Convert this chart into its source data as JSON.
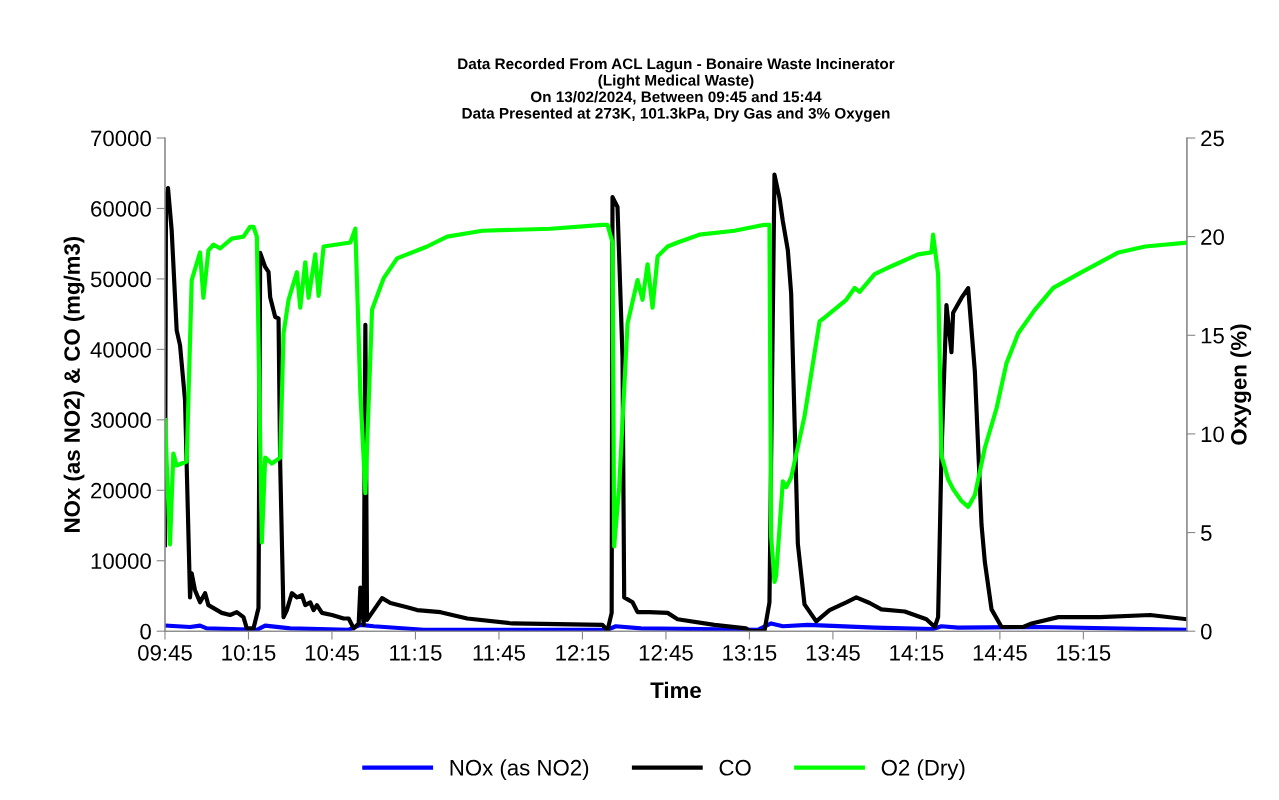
{
  "chart_data": {
    "type": "line",
    "title": "Data Recorded From ACL Lagun - Bonaire Waste Incinerator\n(Light Medical Waste)\nOn 13/02/2024, Between 09:45 and 15:44\nData Presented at 273K, 101.3kPa, Dry Gas and 3% Oxygen",
    "xlabel": "Time",
    "ylabel": "NOx (as NO2) & CO (mg/m3)",
    "y2label": "Oxygen (%)",
    "xlim": [
      9.75,
      15.87
    ],
    "xticks": [
      {
        "value": 9.75,
        "label": "09:45"
      },
      {
        "value": 10.25,
        "label": "10:15"
      },
      {
        "value": 10.75,
        "label": "10:45"
      },
      {
        "value": 11.25,
        "label": "11:15"
      },
      {
        "value": 11.75,
        "label": "11:45"
      },
      {
        "value": 12.25,
        "label": "12:15"
      },
      {
        "value": 12.75,
        "label": "12:45"
      },
      {
        "value": 13.25,
        "label": "13:15"
      },
      {
        "value": 13.75,
        "label": "13:45"
      },
      {
        "value": 14.25,
        "label": "14:15"
      },
      {
        "value": 14.75,
        "label": "14:45"
      },
      {
        "value": 15.25,
        "label": "15:15"
      }
    ],
    "ylim": [
      0,
      70000
    ],
    "yticks": [
      0,
      10000,
      20000,
      30000,
      40000,
      50000,
      60000,
      70000
    ],
    "y2lim": [
      0,
      25
    ],
    "y2ticks": [
      0,
      5,
      10,
      15,
      20,
      25
    ],
    "grid": false,
    "legend": "bottom",
    "marker": "none",
    "line_style": "solid",
    "series": [
      {
        "name": "NOx (as NO2)",
        "color": "#0000ff",
        "axis": "y",
        "x": [
          9.75,
          9.9,
          9.96,
          10.0,
          10.3,
          10.35,
          10.5,
          10.85,
          10.92,
          11.0,
          11.3,
          12.4,
          12.45,
          12.6,
          13.3,
          13.38,
          13.45,
          13.6,
          14.0,
          14.35,
          14.4,
          14.5,
          15.0,
          15.87
        ],
        "values": [
          800,
          600,
          800,
          400,
          200,
          800,
          400,
          200,
          900,
          700,
          200,
          200,
          700,
          400,
          200,
          1100,
          700,
          900,
          500,
          300,
          700,
          500,
          600,
          200
        ]
      },
      {
        "name": "CO",
        "color": "#000000",
        "axis": "y",
        "x": [
          9.75,
          9.756,
          9.768,
          9.79,
          9.82,
          9.84,
          9.87,
          9.9,
          9.91,
          9.93,
          9.96,
          9.99,
          10.01,
          10.09,
          10.14,
          10.18,
          10.22,
          10.24,
          10.28,
          10.31,
          10.32,
          10.35,
          10.37,
          10.38,
          10.41,
          10.43,
          10.44,
          10.46,
          10.48,
          10.51,
          10.54,
          10.57,
          10.59,
          10.62,
          10.64,
          10.66,
          10.69,
          10.75,
          10.82,
          10.85,
          10.88,
          10.91,
          10.92,
          10.94,
          10.95,
          10.96,
          11.05,
          11.1,
          11.2,
          11.26,
          11.4,
          11.56,
          11.83,
          12.37,
          12.4,
          12.425,
          12.43,
          12.46,
          12.49,
          12.5,
          12.55,
          12.58,
          12.65,
          12.76,
          12.82,
          13.04,
          13.23,
          13.25,
          13.34,
          13.37,
          13.4,
          13.43,
          13.45,
          13.48,
          13.5,
          13.54,
          13.58,
          13.65,
          13.73,
          13.83,
          13.89,
          13.97,
          14.04,
          14.18,
          14.31,
          14.36,
          14.38,
          14.4,
          14.43,
          14.46,
          14.47,
          14.52,
          14.56,
          14.6,
          14.64,
          14.66,
          14.7,
          14.76,
          14.89,
          14.94,
          15.1,
          15.35,
          15.65,
          15.87
        ],
        "values": [
          12200,
          61200,
          62900,
          56900,
          42700,
          40600,
          32800,
          4800,
          8200,
          5800,
          4100,
          5400,
          3700,
          2600,
          2300,
          2700,
          2000,
          400,
          400,
          3300,
          53700,
          51700,
          51000,
          47400,
          44600,
          44400,
          23600,
          2000,
          3000,
          5400,
          4800,
          5100,
          3700,
          4100,
          3000,
          3700,
          2600,
          2300,
          1800,
          1800,
          400,
          1100,
          6200,
          900,
          43500,
          1600,
          4700,
          4000,
          3400,
          3000,
          2700,
          1800,
          1100,
          900,
          100,
          2600,
          61600,
          60200,
          38900,
          4800,
          4100,
          2700,
          2700,
          2600,
          1700,
          900,
          400,
          0,
          0,
          4100,
          64800,
          61500,
          58200,
          54100,
          47900,
          12400,
          3800,
          1400,
          3000,
          4100,
          4800,
          4000,
          3100,
          2800,
          1700,
          600,
          2000,
          25000,
          46300,
          39600,
          45200,
          47300,
          48700,
          36900,
          15100,
          9800,
          3100,
          600,
          600,
          1100,
          2000,
          2000,
          2300,
          1700
        ]
      },
      {
        "name": "O2 (Dry)",
        "color": "#00ff00",
        "axis": "y2",
        "x": [
          9.75,
          9.78,
          9.8,
          9.82,
          9.88,
          9.91,
          9.96,
          9.98,
          10.01,
          10.04,
          10.08,
          10.15,
          10.22,
          10.26,
          10.28,
          10.3,
          10.33,
          10.35,
          10.39,
          10.44,
          10.46,
          10.49,
          10.54,
          10.56,
          10.59,
          10.61,
          10.65,
          10.67,
          10.7,
          10.86,
          10.89,
          10.92,
          10.95,
          10.99,
          11.06,
          11.14,
          11.2,
          11.32,
          11.44,
          11.65,
          12.06,
          12.37,
          12.4,
          12.43,
          12.44,
          12.47,
          12.52,
          12.58,
          12.61,
          12.64,
          12.67,
          12.7,
          12.76,
          12.82,
          12.95,
          13.16,
          13.34,
          13.37,
          13.38,
          13.4,
          13.41,
          13.45,
          13.47,
          13.5,
          13.58,
          13.67,
          13.7,
          13.83,
          13.88,
          13.91,
          14.0,
          14.1,
          14.26,
          14.34,
          14.35,
          14.38,
          14.4,
          14.44,
          14.47,
          14.52,
          14.56,
          14.6,
          14.66,
          14.73,
          14.79,
          14.86,
          14.96,
          15.07,
          15.24,
          15.46,
          15.62,
          15.87
        ],
        "values": [
          10.7,
          4.4,
          9.0,
          8.4,
          8.6,
          17.8,
          19.2,
          16.9,
          19.3,
          19.6,
          19.4,
          19.9,
          20.0,
          20.5,
          20.5,
          20.0,
          4.5,
          8.8,
          8.5,
          8.8,
          15.1,
          16.8,
          18.2,
          16.4,
          18.7,
          16.9,
          19.1,
          17.0,
          19.5,
          19.7,
          20.4,
          12.1,
          7.0,
          16.3,
          17.9,
          18.9,
          19.1,
          19.5,
          20.0,
          20.3,
          20.4,
          20.6,
          20.6,
          19.7,
          4.3,
          7.3,
          15.6,
          17.8,
          16.8,
          18.6,
          16.4,
          19.0,
          19.5,
          19.7,
          20.1,
          20.3,
          20.6,
          20.6,
          4.8,
          2.5,
          2.8,
          7.6,
          7.3,
          7.8,
          10.9,
          15.7,
          15.9,
          16.8,
          17.4,
          17.2,
          18.1,
          18.5,
          19.1,
          19.2,
          20.1,
          18.1,
          8.9,
          7.7,
          7.2,
          6.6,
          6.3,
          6.9,
          9.3,
          11.3,
          13.6,
          15.1,
          16.3,
          17.4,
          18.2,
          19.2,
          19.5,
          19.7
        ]
      }
    ]
  }
}
